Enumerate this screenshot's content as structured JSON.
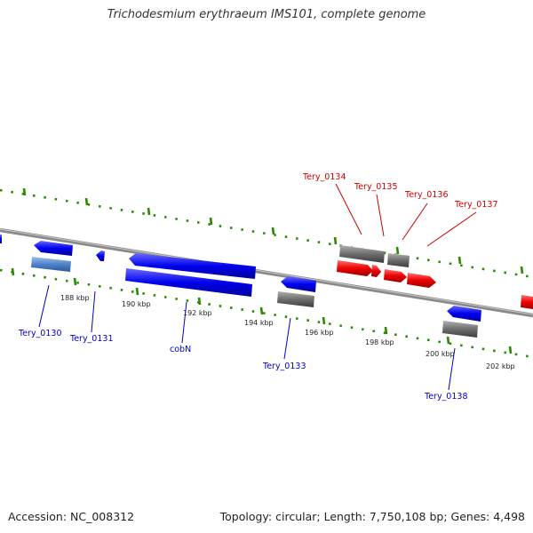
{
  "title": "Trichodesmium erythraeum IMS101, complete genome",
  "accession": "Accession: NC_008312",
  "summary": "Topology: circular; Length: 7,750,108 bp; Genes: 4,498",
  "ticks": [
    "188 kbp",
    "190 kbp",
    "192 kbp",
    "194 kbp",
    "196 kbp",
    "198 kbp",
    "200 kbp",
    "202 kbp"
  ],
  "genes_top": [
    "Tery_0134",
    "Tery_0135",
    "Tery_0136",
    "Tery_0137"
  ],
  "genes_bottom": [
    "Tery_0130",
    "Tery_0131",
    "cobN",
    "Tery_0133",
    "Tery_0138"
  ],
  "colors": {
    "forward_gene": "#ff0000",
    "reverse_gene": "#0000ff",
    "rna_gene": "#5c8fd6",
    "pseudo": "#777777",
    "backbone": "#8a8a8a",
    "gc_marks": "#2a8a00",
    "label_forward": "#cc0000",
    "label_reverse": "#0000cc"
  }
}
